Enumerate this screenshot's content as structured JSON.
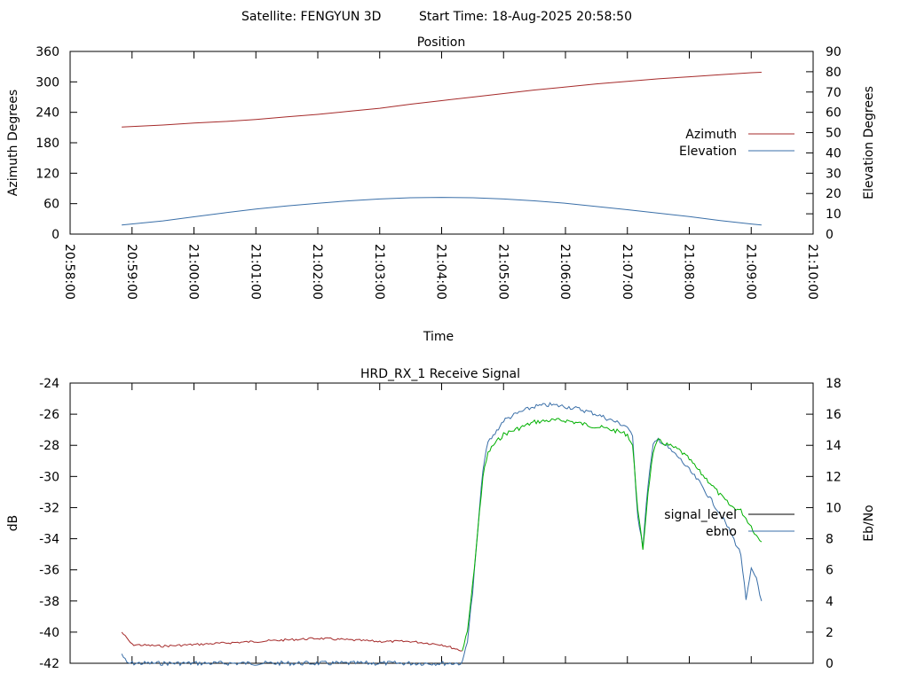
{
  "header": {
    "satellite": "Satellite: FENGYUN 3D",
    "start_time": "Start Time: 18-Aug-2025 20:58:50"
  },
  "chart_data": [
    {
      "id": "position",
      "type": "line",
      "title": "Position",
      "xlabel": "Time",
      "ylabel": "Azimuth Degrees",
      "y2label": "Elevation Degrees",
      "xlim": [
        "20:58:00",
        "21:10:00"
      ],
      "x_ticks": [
        "20:58:00",
        "20:59:00",
        "21:00:00",
        "21:01:00",
        "21:02:00",
        "21:03:00",
        "21:04:00",
        "21:05:00",
        "21:06:00",
        "21:07:00",
        "21:08:00",
        "21:09:00",
        "21:10:00"
      ],
      "ylim": [
        0,
        360
      ],
      "y_ticks": [
        "0",
        "60",
        "120",
        "180",
        "240",
        "300",
        "360"
      ],
      "y2lim": [
        0,
        90
      ],
      "y2_ticks": [
        "0",
        "10",
        "20",
        "30",
        "40",
        "50",
        "60",
        "70",
        "80",
        "90"
      ],
      "legend_position": "right",
      "series": [
        {
          "name": "Azimuth",
          "axis": "y",
          "color": "#a52a2a",
          "x": [
            "20:58:50",
            "20:59:30",
            "21:00:00",
            "21:00:30",
            "21:01:00",
            "21:01:30",
            "21:02:00",
            "21:02:30",
            "21:03:00",
            "21:03:30",
            "21:04:00",
            "21:04:30",
            "21:05:00",
            "21:05:30",
            "21:06:00",
            "21:06:30",
            "21:07:00",
            "21:07:30",
            "21:08:00",
            "21:08:30",
            "21:09:00",
            "21:09:10"
          ],
          "values": [
            211,
            215,
            219,
            222,
            226,
            231,
            236,
            242,
            248,
            256,
            263,
            270,
            277,
            284,
            290,
            296,
            301,
            306,
            310,
            314,
            318,
            319
          ]
        },
        {
          "name": "Elevation",
          "axis": "y2",
          "color": "#3a6fa8",
          "x": [
            "20:58:50",
            "20:59:30",
            "21:00:00",
            "21:00:30",
            "21:01:00",
            "21:01:30",
            "21:02:00",
            "21:02:30",
            "21:03:00",
            "21:03:30",
            "21:04:00",
            "21:04:30",
            "21:05:00",
            "21:05:30",
            "21:06:00",
            "21:06:30",
            "21:07:00",
            "21:07:30",
            "21:08:00",
            "21:08:30",
            "21:09:00",
            "21:09:10"
          ],
          "values": [
            4.5,
            6.5,
            8.5,
            10.5,
            12.3,
            13.9,
            15.2,
            16.4,
            17.3,
            17.9,
            18.1,
            17.9,
            17.3,
            16.4,
            15.2,
            13.6,
            12.0,
            10.3,
            8.6,
            6.7,
            5.0,
            4.5
          ]
        }
      ]
    },
    {
      "id": "receive-signal",
      "type": "line",
      "title": "HRD_RX_1 Receive Signal",
      "ylabel": "dB",
      "y2label": "Eb/No",
      "xlim": [
        "20:58:00",
        "21:10:00"
      ],
      "ylim": [
        -42,
        -24
      ],
      "y_ticks": [
        "-42",
        "-40",
        "-38",
        "-36",
        "-34",
        "-32",
        "-30",
        "-28",
        "-26",
        "-24"
      ],
      "y2lim": [
        0,
        18
      ],
      "y2_ticks": [
        "0",
        "2",
        "4",
        "6",
        "8",
        "10",
        "12",
        "14",
        "16",
        "18"
      ],
      "legend_position": "right",
      "series": [
        {
          "name": "signal_level",
          "axis": "y",
          "color": "#000000",
          "segments": [
            {
              "color": "#a52a2a",
              "x": [
                "20:58:50",
                "20:59:00",
                "20:59:30",
                "21:00:00",
                "21:00:30",
                "21:01:00",
                "21:01:30",
                "21:02:00",
                "21:02:30",
                "21:03:00",
                "21:03:30",
                "21:04:00",
                "21:04:20"
              ],
              "values": [
                -40.0,
                -40.8,
                -40.9,
                -40.8,
                -40.7,
                -40.6,
                -40.5,
                -40.4,
                -40.5,
                -40.6,
                -40.6,
                -40.8,
                -41.2
              ]
            },
            {
              "color": "#00b000",
              "x": [
                "21:04:20",
                "21:04:25",
                "21:04:30",
                "21:04:35",
                "21:04:40",
                "21:04:45",
                "21:04:50",
                "21:05:00",
                "21:05:15",
                "21:05:30",
                "21:05:45",
                "21:06:00",
                "21:06:15",
                "21:06:30",
                "21:06:45",
                "21:07:00",
                "21:07:05",
                "21:07:10",
                "21:07:15",
                "21:07:20",
                "21:07:25",
                "21:07:30",
                "21:07:40",
                "21:07:50",
                "21:08:00",
                "21:08:10",
                "21:08:20",
                "21:08:30",
                "21:08:40",
                "21:08:50",
                "21:09:00",
                "21:09:05",
                "21:09:10"
              ],
              "values": [
                -41.2,
                -40.0,
                -37.0,
                -33.5,
                -30.0,
                -28.5,
                -28.0,
                -27.3,
                -26.9,
                -26.5,
                -26.4,
                -26.4,
                -26.6,
                -26.8,
                -27.0,
                -27.3,
                -28.0,
                -32.0,
                -34.8,
                -31.0,
                -28.4,
                -27.7,
                -28.0,
                -28.3,
                -28.9,
                -29.7,
                -30.4,
                -31.2,
                -31.9,
                -32.2,
                -33.2,
                -33.8,
                -34.2
              ]
            }
          ]
        },
        {
          "name": "ebno",
          "axis": "y2",
          "color": "#3a6fa8",
          "x": [
            "20:58:50",
            "20:58:55",
            "21:04:20",
            "21:04:25",
            "21:04:30",
            "21:04:35",
            "21:04:40",
            "21:04:45",
            "21:04:50",
            "21:05:00",
            "21:05:15",
            "21:05:30",
            "21:05:45",
            "21:06:00",
            "21:06:15",
            "21:06:30",
            "21:06:45",
            "21:07:00",
            "21:07:05",
            "21:07:10",
            "21:07:15",
            "21:07:20",
            "21:07:25",
            "21:07:30",
            "21:07:40",
            "21:07:50",
            "21:08:00",
            "21:08:10",
            "21:08:20",
            "21:08:30",
            "21:08:40",
            "21:08:50",
            "21:08:55",
            "21:09:00",
            "21:09:05",
            "21:09:10"
          ],
          "values": [
            0.6,
            0,
            0,
            1.5,
            4.5,
            8.5,
            12.5,
            14.2,
            14.6,
            15.6,
            16.1,
            16.5,
            16.6,
            16.5,
            16.3,
            16.0,
            15.6,
            15.2,
            14.5,
            9.5,
            7.5,
            11.5,
            14.0,
            14.4,
            13.8,
            13.2,
            12.4,
            11.6,
            10.6,
            9.6,
            8.4,
            7.0,
            4.0,
            6.0,
            5.5,
            4.0
          ]
        }
      ]
    }
  ]
}
